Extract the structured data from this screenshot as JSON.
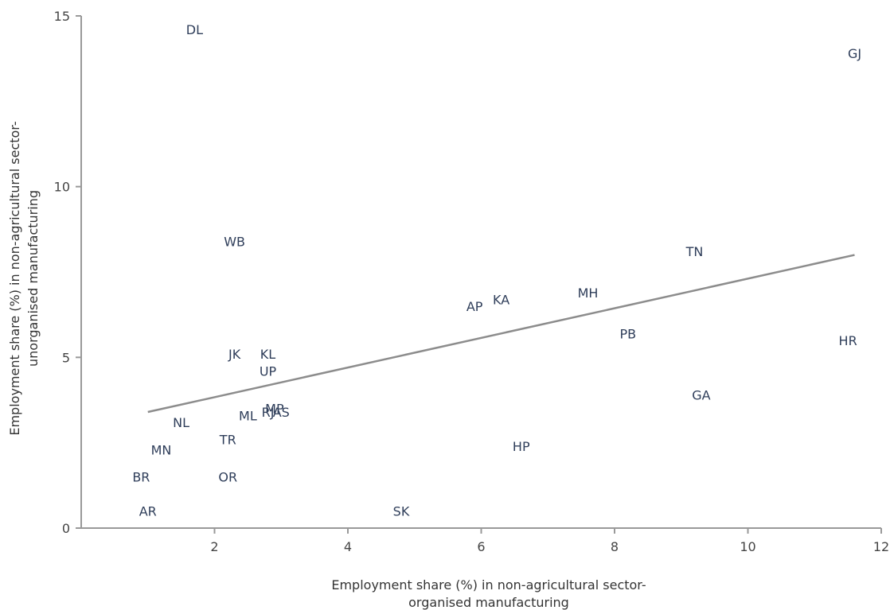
{
  "chart_data": {
    "type": "scatter",
    "title": "",
    "xlabel": [
      "Employment share (%) in non-agricultural sector-",
      "organised manufacturing"
    ],
    "ylabel": [
      "Employment share (%) in non-agricultural sector-",
      "unorganised manufacturing"
    ],
    "xlim": [
      0,
      12
    ],
    "ylim": [
      0,
      15
    ],
    "xticks": [
      2,
      4,
      6,
      8,
      10,
      12
    ],
    "yticks": [
      0,
      5,
      10,
      15
    ],
    "grid": false,
    "points": [
      {
        "label": "DL",
        "x": 1.7,
        "y": 14.6
      },
      {
        "label": "GJ",
        "x": 11.6,
        "y": 13.9
      },
      {
        "label": "WB",
        "x": 2.3,
        "y": 8.4
      },
      {
        "label": "TN",
        "x": 9.2,
        "y": 8.1
      },
      {
        "label": "MH",
        "x": 7.6,
        "y": 6.9
      },
      {
        "label": "KA",
        "x": 6.3,
        "y": 6.7
      },
      {
        "label": "AP",
        "x": 5.9,
        "y": 6.5
      },
      {
        "label": "PB",
        "x": 8.2,
        "y": 5.7
      },
      {
        "label": "HR",
        "x": 11.5,
        "y": 5.5
      },
      {
        "label": "JK",
        "x": 2.3,
        "y": 5.1
      },
      {
        "label": "KL",
        "x": 2.8,
        "y": 5.1
      },
      {
        "label": "UP",
        "x": 2.8,
        "y": 4.6
      },
      {
        "label": "GA",
        "x": 9.3,
        "y": 3.9
      },
      {
        "label": "MP",
        "x": 2.9,
        "y": 3.5
      },
      {
        "label": "RJ",
        "x": 2.8,
        "y": 3.4
      },
      {
        "label": "AS",
        "x": 3.0,
        "y": 3.4
      },
      {
        "label": "ML",
        "x": 2.5,
        "y": 3.3
      },
      {
        "label": "NL",
        "x": 1.5,
        "y": 3.1
      },
      {
        "label": "TR",
        "x": 2.2,
        "y": 2.6
      },
      {
        "label": "HP",
        "x": 6.6,
        "y": 2.4
      },
      {
        "label": "MN",
        "x": 1.2,
        "y": 2.3
      },
      {
        "label": "BR",
        "x": 0.9,
        "y": 1.5
      },
      {
        "label": "OR",
        "x": 2.2,
        "y": 1.5
      },
      {
        "label": "AR",
        "x": 1.0,
        "y": 0.5
      },
      {
        "label": "SK",
        "x": 4.8,
        "y": 0.5
      }
    ],
    "trendline": {
      "x": [
        1.0,
        11.6
      ],
      "y": [
        3.4,
        8.0
      ]
    },
    "colors": {
      "axis": "#999999",
      "trendline": "#8c8c8c",
      "label": "#2f3e5a"
    }
  }
}
